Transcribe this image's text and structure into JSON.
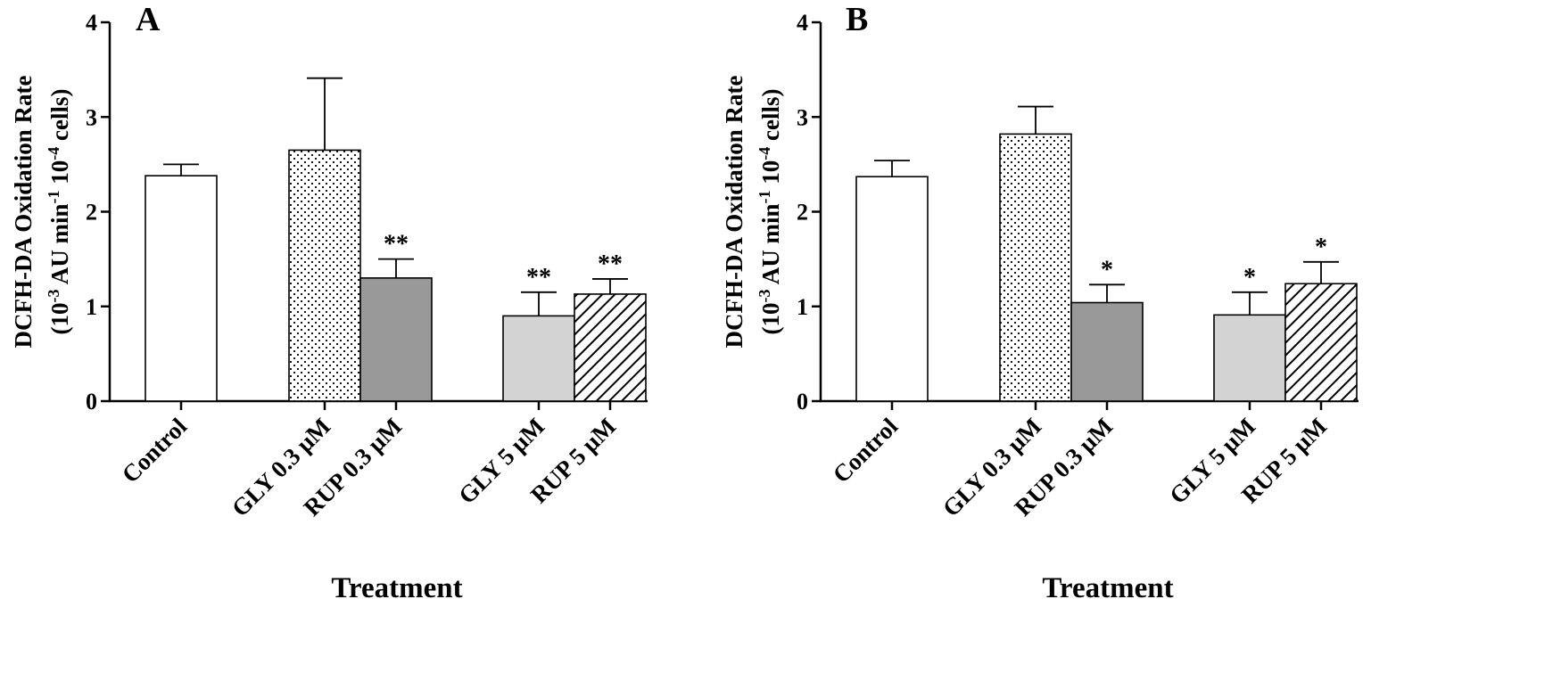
{
  "chart_data": [
    {
      "type": "bar",
      "panel_label": "A",
      "categories": [
        "Control",
        "GLY 0.3 μM",
        "RUP 0.3 μM",
        "GLY 5 μM",
        "RUP 5 μM"
      ],
      "values": [
        2.38,
        2.65,
        1.3,
        0.9,
        1.13
      ],
      "errors": [
        0.12,
        0.76,
        0.2,
        0.25,
        0.16
      ],
      "significance": [
        "",
        "",
        "**",
        "**",
        "**"
      ],
      "xlabel": "Treatment",
      "ylabel_line1": "DCFH-DA Oxidation Rate",
      "ylabel_line2": [
        "(10",
        "-3",
        " AU min",
        "-1",
        " 10",
        "-4",
        " cells)"
      ],
      "ylim": [
        0,
        4
      ],
      "yticks": [
        0,
        1,
        2,
        3,
        4
      ],
      "fills": [
        "white",
        "dots",
        "#999999",
        "#d3d3d3",
        "hatch"
      ]
    },
    {
      "type": "bar",
      "panel_label": "B",
      "categories": [
        "Control",
        "GLY 0.3 μM",
        "RUP 0.3 μM",
        "GLY 5 μM",
        "RUP 5 μM"
      ],
      "values": [
        2.37,
        2.82,
        1.04,
        0.91,
        1.24
      ],
      "errors": [
        0.17,
        0.29,
        0.19,
        0.24,
        0.23
      ],
      "significance": [
        "",
        "",
        "*",
        "*",
        "*"
      ],
      "xlabel": "Treatment",
      "ylabel_line1": "DCFH-DA Oxidation Rate",
      "ylabel_line2": [
        "(10",
        "-3",
        " AU min",
        "-1",
        " 10",
        "-4",
        " cells)"
      ],
      "ylim": [
        0,
        4
      ],
      "yticks": [
        0,
        1,
        2,
        3,
        4
      ],
      "fills": [
        "white",
        "dots",
        "#999999",
        "#d3d3d3",
        "hatch"
      ]
    }
  ]
}
